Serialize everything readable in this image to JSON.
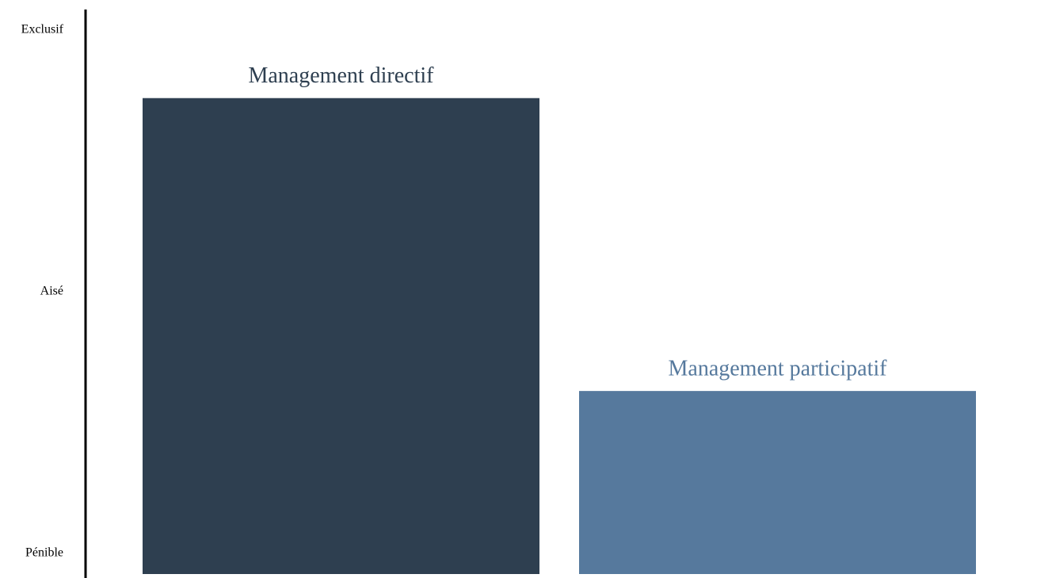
{
  "chart_data": {
    "type": "bar",
    "categories": [
      "Management directif",
      "Management participatif"
    ],
    "values": [
      87,
      31
    ],
    "colors": [
      "#2e3f50",
      "#56799d"
    ],
    "ylim": [
      -4,
      105
    ],
    "yticks": [
      {
        "value": 0,
        "label": "Pénible"
      },
      {
        "value": 50,
        "label": "Aisé"
      },
      {
        "value": 100,
        "label": "Exclusif"
      }
    ]
  }
}
